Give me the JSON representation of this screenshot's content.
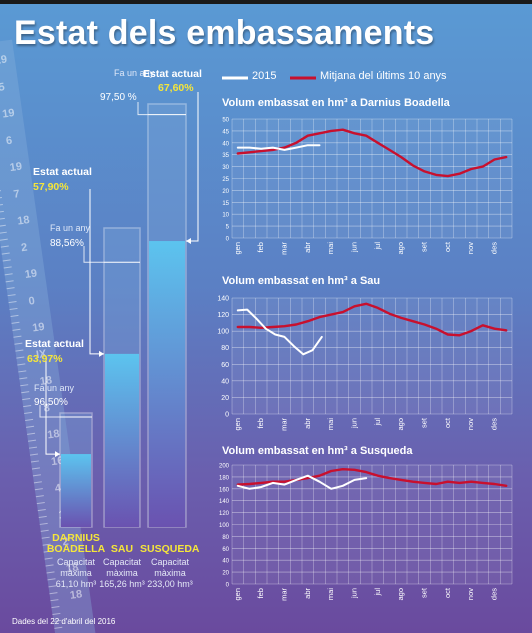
{
  "title": "Estat dels embassaments",
  "legend": {
    "current_label": "2015",
    "avg_label": "Mitjana del últims 10 anys",
    "current_color": "#ffffff",
    "avg_color": "#c8102e"
  },
  "ruler_marks": [
    "19",
    "5",
    "19",
    "6",
    "19",
    "7",
    "18",
    "2",
    "19",
    "0",
    "19",
    "IX",
    "18",
    "8",
    "18",
    "16",
    "4",
    "18",
    "2",
    "18",
    "18"
  ],
  "tanks": [
    {
      "name_lines": [
        "DARNIUS",
        "BOADELLA"
      ],
      "cap_label_1": "Capacitat",
      "cap_label_2": "màxima",
      "capacity": "61,10 hm³",
      "actual_label": "Estat actual",
      "actual_value": "63,97%",
      "prev_label": "Fa un any",
      "prev_value": "96,50%",
      "actual_pct": 63.97,
      "prev_pct": 96.5
    },
    {
      "name_lines": [
        "SAU"
      ],
      "cap_label_1": "Capacitat",
      "cap_label_2": "màxima",
      "capacity": "165,26 hm³",
      "actual_label": "Estat actual",
      "actual_value": "57,90%",
      "prev_label": "Fa un any",
      "prev_value": "88,56%",
      "actual_pct": 57.9,
      "prev_pct": 88.56
    },
    {
      "name_lines": [
        "SUSQUEDA"
      ],
      "cap_label_1": "Capacitat",
      "cap_label_2": "màxima",
      "capacity": "233,00 hm³",
      "actual_label": "Estat actual",
      "actual_value": "67,60%",
      "prev_label": "Fa un any",
      "prev_value": "97,50 %",
      "actual_pct": 67.6,
      "prev_pct": 97.5
    }
  ],
  "source": "Dades del 22 d'abril del 2016",
  "chart_data": [
    {
      "type": "line",
      "title": "Volum embassat en hm³ a Darnius Boadella",
      "ylim": [
        0,
        50
      ],
      "yticks": [
        0,
        5,
        10,
        15,
        20,
        25,
        30,
        35,
        40,
        45,
        50
      ],
      "month_labels": [
        "gen",
        "feb",
        "mar",
        "abr",
        "mai",
        "jun",
        "jul",
        "ago",
        "set",
        "oct",
        "nov",
        "des"
      ],
      "series": [
        {
          "name": "2015",
          "x": [
            0,
            0.5,
            1.0,
            1.5,
            2.0,
            2.5,
            3.0,
            3.5
          ],
          "values": [
            38,
            38,
            37.5,
            38,
            37,
            38,
            39,
            39
          ]
        },
        {
          "name": "Mitjana del últims 10 anys",
          "x": [
            0,
            0.5,
            1.0,
            1.5,
            2.0,
            2.5,
            3.0,
            3.5,
            4.0,
            4.5,
            5.0,
            5.5,
            6.0,
            6.5,
            7.0,
            7.5,
            8.0,
            8.5,
            9.0,
            9.5,
            10.0,
            10.5,
            11.0,
            11.5
          ],
          "values": [
            35.5,
            36,
            36.5,
            37,
            38,
            40,
            43,
            44,
            45,
            45.5,
            44,
            43,
            40,
            37,
            34,
            30.5,
            28,
            26.5,
            26,
            27,
            29,
            30,
            33,
            34
          ]
        }
      ]
    },
    {
      "type": "line",
      "title": "Volum embassat en hm³ a Sau",
      "ylim": [
        0,
        140
      ],
      "yticks": [
        0,
        20,
        40,
        60,
        80,
        100,
        120,
        140
      ],
      "month_labels": [
        "gen",
        "feb",
        "mar",
        "abr",
        "mai",
        "jun",
        "jul",
        "ago",
        "set",
        "oct",
        "nov",
        "des"
      ],
      "series": [
        {
          "name": "2015",
          "x": [
            0,
            0.4,
            0.8,
            1.2,
            1.6,
            2.0,
            2.4,
            2.8,
            3.2,
            3.6
          ],
          "values": [
            125,
            126,
            115,
            103,
            96,
            93,
            82,
            72,
            77,
            93
          ]
        },
        {
          "name": "Mitjana del últims 10 anys",
          "x": [
            0,
            0.5,
            1.0,
            1.5,
            2.0,
            2.5,
            3.0,
            3.5,
            4.0,
            4.5,
            5.0,
            5.5,
            6.0,
            6.5,
            7.0,
            7.5,
            8.0,
            8.5,
            9.0,
            9.5,
            10.0,
            10.5,
            11.0,
            11.5
          ],
          "values": [
            105,
            105,
            104,
            105,
            106,
            108,
            112,
            117,
            120,
            123,
            130,
            133,
            128,
            121,
            116,
            112,
            108,
            103,
            96,
            95,
            100,
            107,
            103,
            101
          ]
        }
      ]
    },
    {
      "type": "line",
      "title": "Volum embassat en hm³ a Susqueda",
      "ylim": [
        0,
        200
      ],
      "yticks": [
        0,
        20,
        40,
        60,
        80,
        100,
        120,
        140,
        160,
        180,
        200
      ],
      "month_labels": [
        "gen",
        "feb",
        "mar",
        "abr",
        "mai",
        "jun",
        "jul",
        "ago",
        "set",
        "oct",
        "nov",
        "des"
      ],
      "series": [
        {
          "name": "2015",
          "x": [
            0,
            0.5,
            1.0,
            1.5,
            2.0,
            2.5,
            3.0,
            3.5,
            4.0,
            4.5,
            5.0,
            5.5
          ],
          "values": [
            165,
            160,
            163,
            170,
            167,
            175,
            182,
            172,
            160,
            165,
            175,
            178
          ]
        },
        {
          "name": "Mitjana del últims 10 anys",
          "x": [
            0,
            0.5,
            1.0,
            1.5,
            2.0,
            2.5,
            3.0,
            3.5,
            4.0,
            4.5,
            5.0,
            5.5,
            6.0,
            6.5,
            7.0,
            7.5,
            8.0,
            8.5,
            9.0,
            9.5,
            10.0,
            10.5,
            11.0,
            11.5
          ],
          "values": [
            167,
            168,
            170,
            172,
            172,
            175,
            178,
            182,
            190,
            193,
            192,
            188,
            182,
            178,
            175,
            172,
            170,
            168,
            172,
            170,
            172,
            170,
            168,
            165
          ]
        }
      ]
    }
  ]
}
